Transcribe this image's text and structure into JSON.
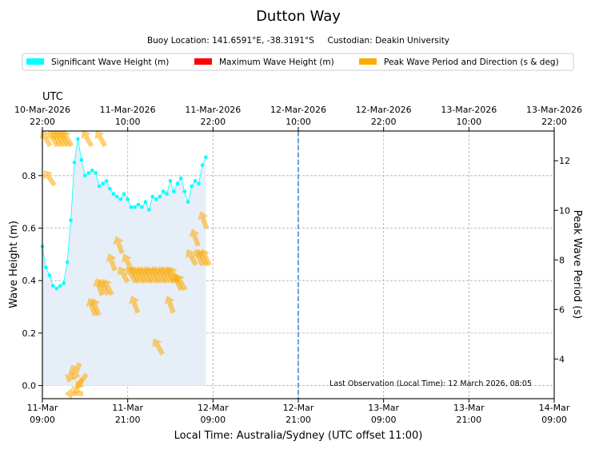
{
  "chart_data": {
    "type": "scatter",
    "title": "Dutton Way",
    "subtitle": "Buoy Location: 141.6591°E, -38.3191°S     Custodian: Deakin University",
    "legend": {
      "placement": "top",
      "entries": [
        {
          "label": "Significant Wave Height (m)",
          "color": "#00ffff"
        },
        {
          "label": "Maximum Wave Height (m)",
          "color": "#ff0000"
        },
        {
          "label": "Peak Wave Period and Direction (s & deg)",
          "color": "#ffaa00"
        }
      ]
    },
    "xlabel": "Local Time: Australia/Sydney (UTC offset 11:00)",
    "ylabel": "Wave Height (m)",
    "y2label": "Peak Wave Period (s)",
    "xlim_hours": [
      0,
      72
    ],
    "ylim": [
      -0.05,
      0.97
    ],
    "y2lim": [
      2.4,
      13.2
    ],
    "yticks": [
      "0.0",
      "0.2",
      "0.4",
      "0.6",
      "0.8"
    ],
    "y2ticks": [
      "4",
      "6",
      "8",
      "10",
      "12"
    ],
    "xticks_local": [
      {
        "date": "11-Mar",
        "time": "09:00"
      },
      {
        "date": "11-Mar",
        "time": "21:00"
      },
      {
        "date": "12-Mar",
        "time": "09:00"
      },
      {
        "date": "12-Mar",
        "time": "21:00"
      },
      {
        "date": "13-Mar",
        "time": "09:00"
      },
      {
        "date": "13-Mar",
        "time": "21:00"
      },
      {
        "date": "14-Mar",
        "time": "09:00"
      }
    ],
    "utc_label": "UTC",
    "xticks_utc": [
      {
        "date": "10-Mar-2026",
        "time": "22:00"
      },
      {
        "date": "11-Mar-2026",
        "time": "10:00"
      },
      {
        "date": "11-Mar-2026",
        "time": "22:00"
      },
      {
        "date": "12-Mar-2026",
        "time": "10:00"
      },
      {
        "date": "12-Mar-2026",
        "time": "22:00"
      },
      {
        "date": "13-Mar-2026",
        "time": "10:00"
      },
      {
        "date": "13-Mar-2026",
        "time": "22:00"
      }
    ],
    "now_line_hours": 36,
    "annotation": "Last Observation (Local Time): 12 March 2026, 08:05",
    "significant_wave_height": {
      "hours": [
        0.0,
        0.5,
        1.0,
        1.5,
        2.0,
        2.5,
        3.0,
        3.5,
        4.0,
        4.5,
        5.0,
        5.5,
        6.0,
        6.5,
        7.0,
        7.5,
        8.0,
        8.5,
        9.0,
        9.5,
        10.0,
        10.5,
        11.0,
        11.5,
        12.0,
        12.5,
        13.0,
        13.5,
        14.0,
        14.5,
        15.0,
        15.5,
        16.0,
        16.5,
        17.0,
        17.5,
        18.0,
        18.5,
        19.0,
        19.5,
        20.0,
        20.5,
        21.0,
        21.5,
        22.0,
        22.5,
        23.0
      ],
      "values": [
        0.53,
        0.45,
        0.42,
        0.38,
        0.37,
        0.38,
        0.39,
        0.47,
        0.63,
        0.85,
        0.94,
        0.86,
        0.8,
        0.81,
        0.82,
        0.81,
        0.76,
        0.77,
        0.78,
        0.75,
        0.73,
        0.72,
        0.71,
        0.73,
        0.71,
        0.68,
        0.68,
        0.69,
        0.68,
        0.7,
        0.67,
        0.72,
        0.71,
        0.72,
        0.74,
        0.73,
        0.78,
        0.74,
        0.77,
        0.79,
        0.74,
        0.7,
        0.76,
        0.78,
        0.77,
        0.84,
        0.87
      ]
    },
    "peak_period_direction": [
      {
        "hours": 0.5,
        "period_s": 12.9,
        "dir_deg": 330
      },
      {
        "hours": 1.5,
        "period_s": 12.9,
        "dir_deg": 330
      },
      {
        "hours": 2.0,
        "period_s": 12.9,
        "dir_deg": 330
      },
      {
        "hours": 2.5,
        "period_s": 12.9,
        "dir_deg": 330
      },
      {
        "hours": 3.0,
        "period_s": 12.9,
        "dir_deg": 330
      },
      {
        "hours": 3.5,
        "period_s": 12.9,
        "dir_deg": 330
      },
      {
        "hours": 1.0,
        "period_s": 11.3,
        "dir_deg": 325
      },
      {
        "hours": 4.5,
        "period_s": 2.6,
        "dir_deg": 270
      },
      {
        "hours": 5.0,
        "period_s": 2.9,
        "dir_deg": 210
      },
      {
        "hours": 5.5,
        "period_s": 3.1,
        "dir_deg": 215
      },
      {
        "hours": 4.0,
        "period_s": 3.4,
        "dir_deg": 200
      },
      {
        "hours": 4.8,
        "period_s": 3.5,
        "dir_deg": 200
      },
      {
        "hours": 6.3,
        "period_s": 12.9,
        "dir_deg": 330
      },
      {
        "hours": 8.2,
        "period_s": 12.9,
        "dir_deg": 330
      },
      {
        "hours": 7.0,
        "period_s": 6.1,
        "dir_deg": 340
      },
      {
        "hours": 7.5,
        "period_s": 6.1,
        "dir_deg": 340
      },
      {
        "hours": 8.0,
        "period_s": 6.9,
        "dir_deg": 340
      },
      {
        "hours": 8.6,
        "period_s": 6.9,
        "dir_deg": 330
      },
      {
        "hours": 9.2,
        "period_s": 6.9,
        "dir_deg": 330
      },
      {
        "hours": 9.8,
        "period_s": 7.9,
        "dir_deg": 340
      },
      {
        "hours": 10.8,
        "period_s": 8.6,
        "dir_deg": 340
      },
      {
        "hours": 11.4,
        "period_s": 7.4,
        "dir_deg": 330
      },
      {
        "hours": 12.0,
        "period_s": 7.9,
        "dir_deg": 335
      },
      {
        "hours": 12.5,
        "period_s": 7.4,
        "dir_deg": 330
      },
      {
        "hours": 13.0,
        "period_s": 7.4,
        "dir_deg": 335
      },
      {
        "hours": 13.5,
        "period_s": 7.4,
        "dir_deg": 330
      },
      {
        "hours": 14.0,
        "period_s": 7.4,
        "dir_deg": 335
      },
      {
        "hours": 14.5,
        "period_s": 7.4,
        "dir_deg": 330
      },
      {
        "hours": 15.0,
        "period_s": 7.4,
        "dir_deg": 335
      },
      {
        "hours": 15.5,
        "period_s": 7.4,
        "dir_deg": 330
      },
      {
        "hours": 16.0,
        "period_s": 7.4,
        "dir_deg": 335
      },
      {
        "hours": 16.5,
        "period_s": 7.4,
        "dir_deg": 330
      },
      {
        "hours": 17.0,
        "period_s": 7.4,
        "dir_deg": 335
      },
      {
        "hours": 17.5,
        "period_s": 7.4,
        "dir_deg": 330
      },
      {
        "hours": 18.0,
        "period_s": 7.4,
        "dir_deg": 335
      },
      {
        "hours": 18.5,
        "period_s": 7.4,
        "dir_deg": 330
      },
      {
        "hours": 19.0,
        "period_s": 7.1,
        "dir_deg": 335
      },
      {
        "hours": 19.5,
        "period_s": 7.1,
        "dir_deg": 330
      },
      {
        "hours": 13.0,
        "period_s": 6.2,
        "dir_deg": 340
      },
      {
        "hours": 16.3,
        "period_s": 4.5,
        "dir_deg": 330
      },
      {
        "hours": 18.0,
        "period_s": 6.2,
        "dir_deg": 340
      },
      {
        "hours": 21.0,
        "period_s": 8.1,
        "dir_deg": 330
      },
      {
        "hours": 21.5,
        "period_s": 8.9,
        "dir_deg": 340
      },
      {
        "hours": 22.0,
        "period_s": 8.1,
        "dir_deg": 335
      },
      {
        "hours": 22.5,
        "period_s": 8.1,
        "dir_deg": 330
      },
      {
        "hours": 23.0,
        "period_s": 8.1,
        "dir_deg": 335
      },
      {
        "hours": 22.7,
        "period_s": 9.6,
        "dir_deg": 340
      }
    ]
  }
}
